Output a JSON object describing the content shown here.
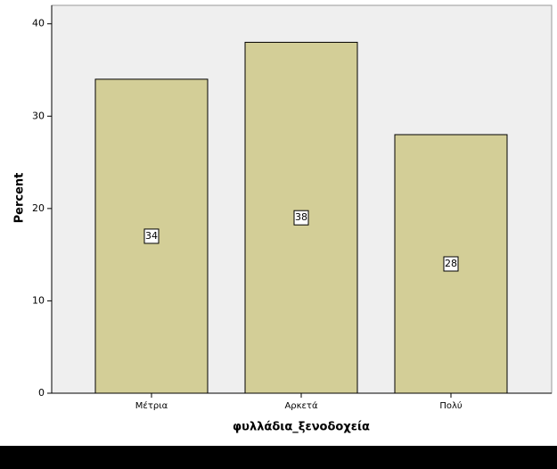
{
  "chart_data": {
    "type": "bar",
    "x_label": "φυλλάδια_ξενοδοχεία",
    "y_label": "Percent",
    "categories": [
      "Μέτρια",
      "Αρκετά",
      "Πολύ"
    ],
    "values": [
      34,
      38,
      28
    ],
    "color": "#d3ce97",
    "ylim": [
      0,
      42
    ],
    "yticks": [
      0,
      10,
      20,
      30,
      40
    ]
  }
}
